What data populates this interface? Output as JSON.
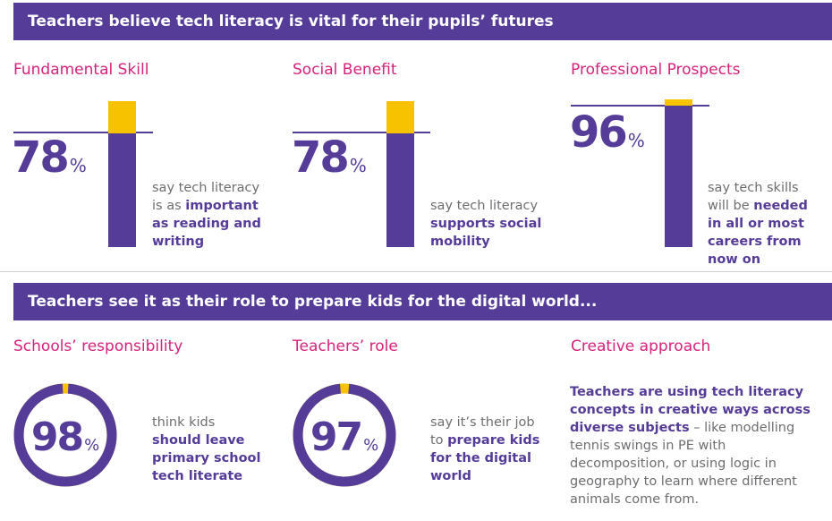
{
  "banners": {
    "top": "Teachers believe tech literacy is vital for their pupils’ futures",
    "bottom": "Teachers see it as their role to prepare kids for the digital world..."
  },
  "colors": {
    "purple": "#553c99",
    "yellow": "#f7c300",
    "pink": "#d6227a",
    "grey_text": "#6d6e71"
  },
  "chart_data": [
    {
      "type": "bar",
      "title": "Fundamental Skill",
      "value": 78,
      "unit": "%",
      "ylim": [
        0,
        100
      ],
      "caption_parts": [
        "say tech literacy is as ",
        "important as reading and writing"
      ]
    },
    {
      "type": "bar",
      "title": "Social Benefit",
      "value": 78,
      "unit": "%",
      "ylim": [
        0,
        100
      ],
      "caption_parts": [
        "say tech literacy ",
        "supports social mobility"
      ]
    },
    {
      "type": "bar",
      "title": "Professional Prospects",
      "value": 96,
      "unit": "%",
      "ylim": [
        0,
        100
      ],
      "caption_parts": [
        "say tech skills will be ",
        "needed in all or most careers from now on"
      ]
    },
    {
      "type": "pie",
      "title": "Schools’ responsibility",
      "value": 98,
      "unit": "%",
      "caption_parts": [
        "think kids ",
        "should leave primary school tech literate"
      ]
    },
    {
      "type": "pie",
      "title": "Teachers’ role",
      "value": 97,
      "unit": "%",
      "caption_parts": [
        "say it’s their job to ",
        "prepare kids for the digital world"
      ]
    }
  ],
  "creative": {
    "title": "Creative approach",
    "bold": "Teachers are using tech literacy concepts in creative ways across diverse subjects",
    "rest": " – like modelling tennis swings in PE with decomposition, or using logic in geography to learn where different animals come from."
  }
}
